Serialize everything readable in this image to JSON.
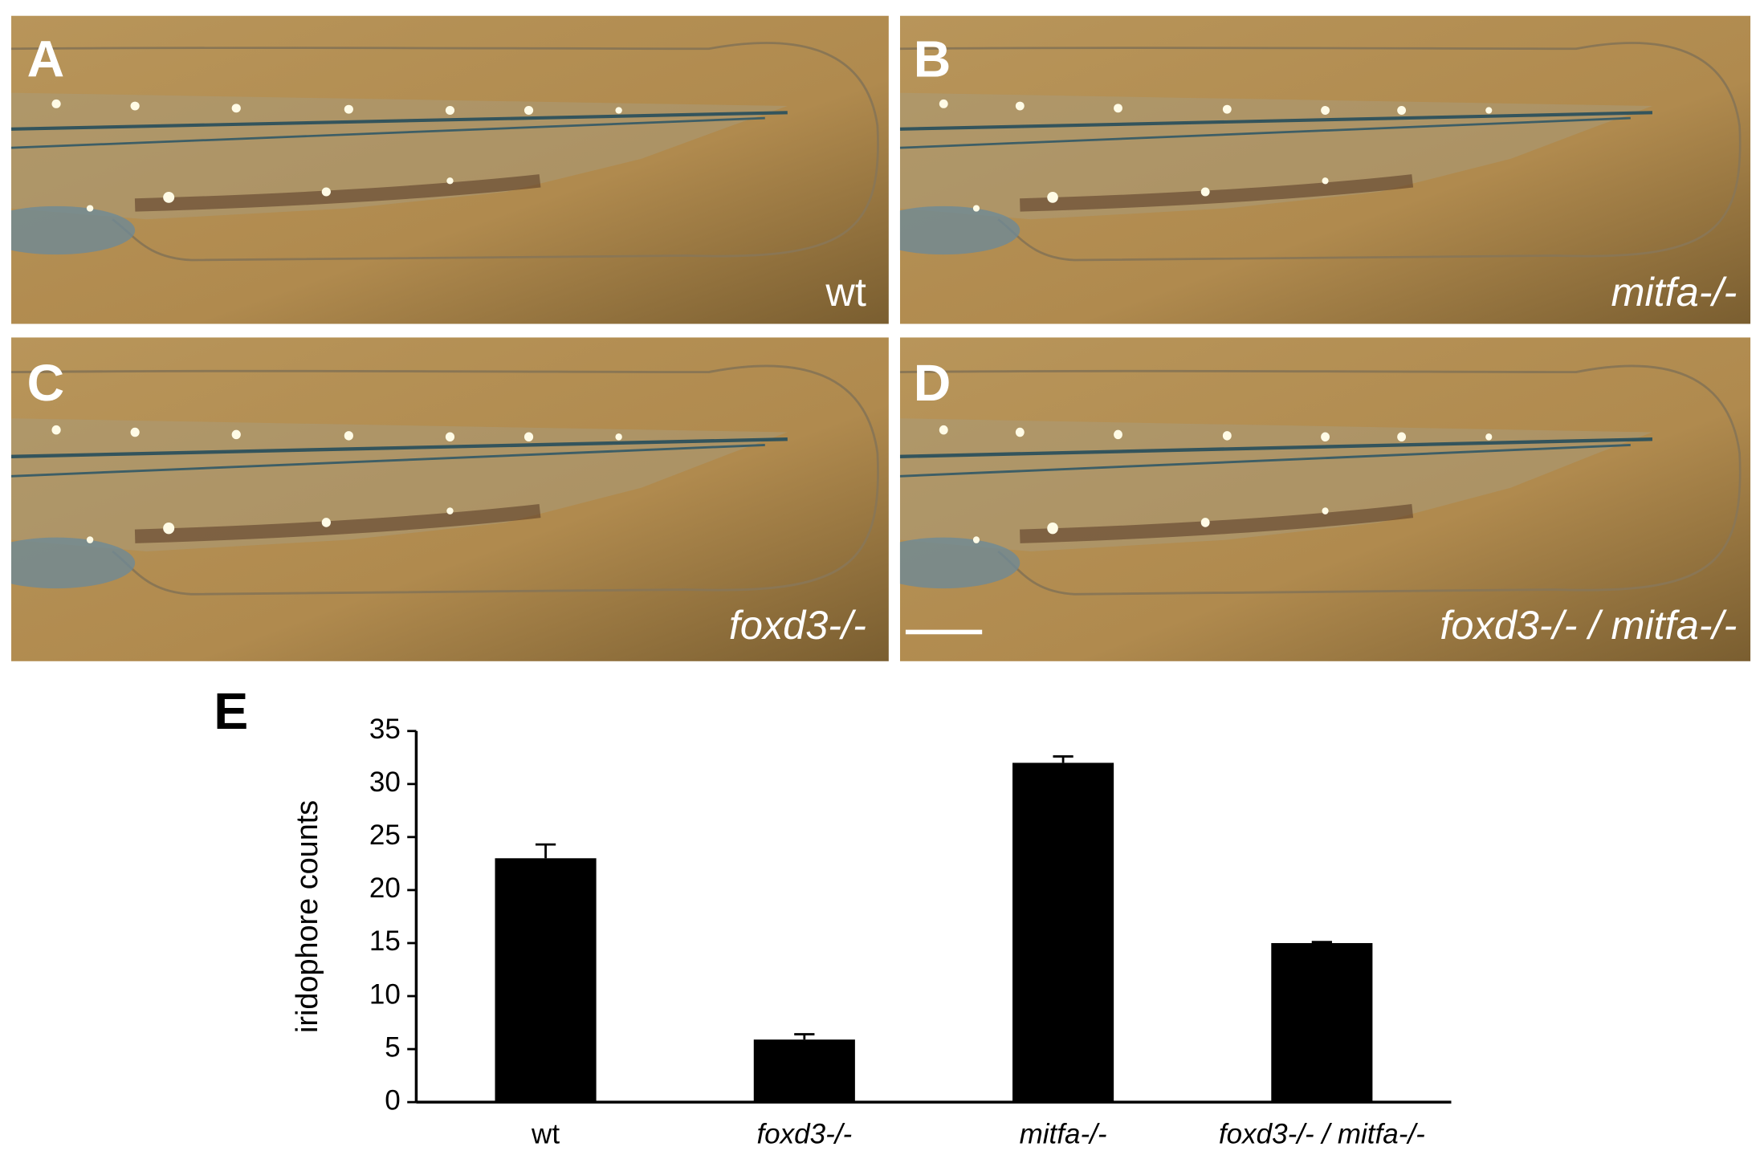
{
  "panels": [
    {
      "label": "A",
      "caption": "wt"
    },
    {
      "label": "B",
      "caption": "mitfa-/-"
    },
    {
      "label": "C",
      "caption": "foxd3-/-"
    },
    {
      "label": "D",
      "caption": "foxd3-/- / mitfa-/-"
    }
  ],
  "chart_data": {
    "type": "bar",
    "label": "E",
    "y_label": "iridophore counts",
    "categories": [
      "wt",
      "foxd3-/-",
      "mitfa-/-",
      "foxd3-/- / mitfa-/-"
    ],
    "values": [
      23,
      5.9,
      32,
      15
    ],
    "errors": [
      1.3,
      0.5,
      0.6,
      0.1
    ],
    "color": "#000000",
    "ylim": [
      0,
      35
    ],
    "yticks": [
      0,
      5,
      10,
      15,
      20,
      25,
      30,
      35
    ],
    "grid": false
  }
}
